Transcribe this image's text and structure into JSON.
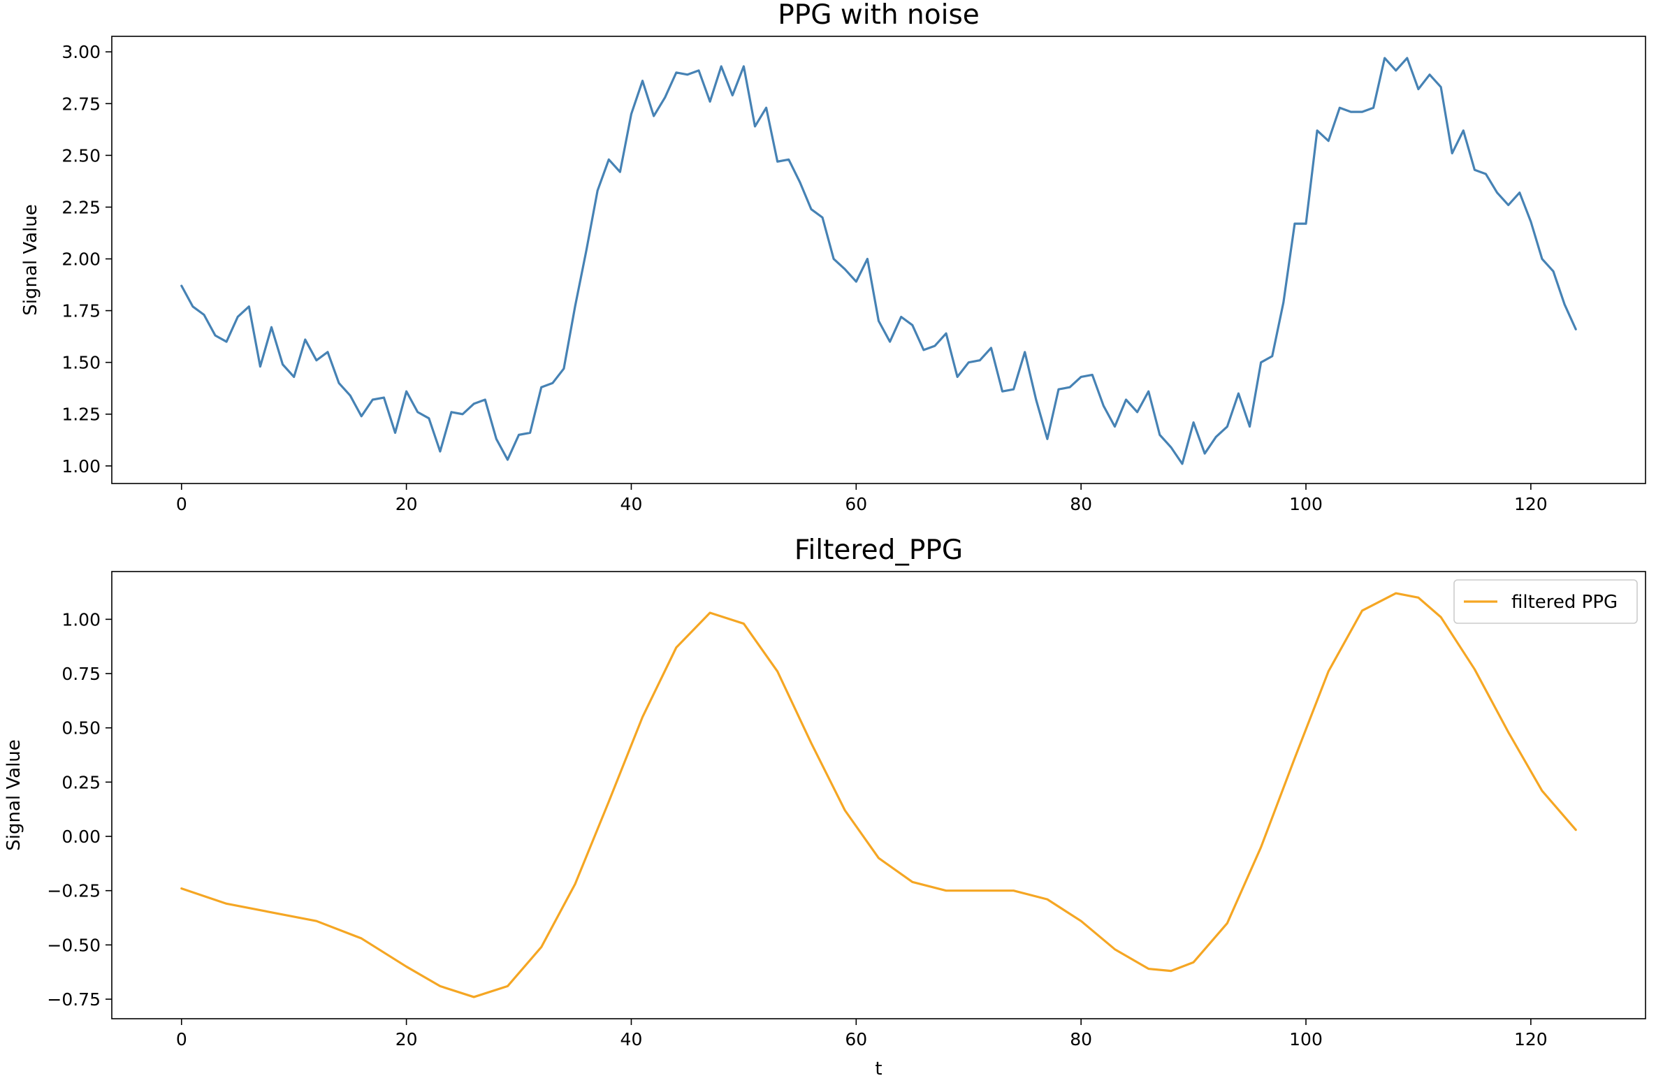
{
  "chart_data": [
    {
      "type": "line",
      "title": "PPG with noise",
      "xlabel": "",
      "ylabel": "Signal Value",
      "xlim": [
        -6.2,
        130.2
      ],
      "ylim": [
        0.915,
        3.075
      ],
      "xticks": [
        0,
        20,
        40,
        60,
        80,
        100,
        120
      ],
      "yticks": [
        1.0,
        1.25,
        1.5,
        1.75,
        2.0,
        2.25,
        2.5,
        2.75,
        3.0
      ],
      "yticklabels": [
        "1.00",
        "1.25",
        "1.50",
        "1.75",
        "2.00",
        "2.25",
        "2.50",
        "2.75",
        "3.00"
      ],
      "grid": false,
      "legend": null,
      "color": "#4682b4",
      "series": [
        {
          "x_start": 0,
          "x_step": 1,
          "values": [
            1.87,
            1.77,
            1.73,
            1.63,
            1.6,
            1.72,
            1.77,
            1.48,
            1.67,
            1.49,
            1.43,
            1.61,
            1.51,
            1.55,
            1.4,
            1.34,
            1.24,
            1.32,
            1.33,
            1.16,
            1.36,
            1.26,
            1.23,
            1.07,
            1.26,
            1.25,
            1.3,
            1.32,
            1.13,
            1.03,
            1.15,
            1.16,
            1.38,
            1.4,
            1.47,
            1.77,
            2.04,
            2.33,
            2.48,
            2.42,
            2.7,
            2.86,
            2.69,
            2.78,
            2.9,
            2.89,
            2.91,
            2.76,
            2.93,
            2.79,
            2.93,
            2.64,
            2.73,
            2.47,
            2.48,
            2.37,
            2.24,
            2.2,
            2.0,
            1.95,
            1.89,
            2.0,
            1.7,
            1.6,
            1.72,
            1.68,
            1.56,
            1.58,
            1.64,
            1.43,
            1.5,
            1.51,
            1.57,
            1.36,
            1.37,
            1.55,
            1.32,
            1.13,
            1.37,
            1.38,
            1.43,
            1.44,
            1.29,
            1.19,
            1.32,
            1.26,
            1.36,
            1.15,
            1.09,
            1.01,
            1.21,
            1.06,
            1.14,
            1.19,
            1.35,
            1.19,
            1.5,
            1.53,
            1.79,
            2.17,
            2.17,
            2.62,
            2.57,
            2.73,
            2.71,
            2.71,
            2.73,
            2.97,
            2.91,
            2.97,
            2.82,
            2.89,
            2.83,
            2.51,
            2.62,
            2.43,
            2.41,
            2.32,
            2.26,
            2.32,
            2.18,
            2.0,
            1.94,
            1.78,
            1.66
          ]
        }
      ]
    },
    {
      "type": "line",
      "title": "Filtered_PPG",
      "xlabel": "t",
      "ylabel": "Signal Value",
      "xlim": [
        -6.2,
        130.2
      ],
      "ylim": [
        -0.84,
        1.22
      ],
      "xticks": [
        0,
        20,
        40,
        60,
        80,
        100,
        120
      ],
      "yticks": [
        -0.75,
        -0.5,
        -0.25,
        0.0,
        0.25,
        0.5,
        0.75,
        1.0
      ],
      "yticklabels": [
        "−0.75",
        "−0.50",
        "−0.25",
        "0.00",
        "0.25",
        "0.50",
        "0.75",
        "1.00"
      ],
      "grid": false,
      "legend": "top-right",
      "color": "#f5a623",
      "series": [
        {
          "name": "filtered PPG",
          "x": [
            0,
            4,
            8,
            12,
            16,
            20,
            23,
            26,
            29,
            32,
            35,
            38,
            41,
            44,
            47,
            50,
            53,
            56,
            59,
            62,
            65,
            68,
            71,
            74,
            77,
            80,
            83,
            86,
            88,
            90,
            93,
            96,
            99,
            102,
            105,
            108,
            110,
            112,
            115,
            118,
            121,
            124
          ],
          "values": [
            -0.24,
            -0.31,
            -0.35,
            -0.39,
            -0.47,
            -0.6,
            -0.69,
            -0.74,
            -0.69,
            -0.51,
            -0.22,
            0.16,
            0.55,
            0.87,
            1.03,
            0.98,
            0.76,
            0.43,
            0.12,
            -0.1,
            -0.21,
            -0.25,
            -0.25,
            -0.25,
            -0.29,
            -0.39,
            -0.52,
            -0.61,
            -0.62,
            -0.58,
            -0.4,
            -0.05,
            0.36,
            0.76,
            1.04,
            1.12,
            1.1,
            1.01,
            0.77,
            0.48,
            0.21,
            0.03
          ]
        }
      ]
    }
  ]
}
